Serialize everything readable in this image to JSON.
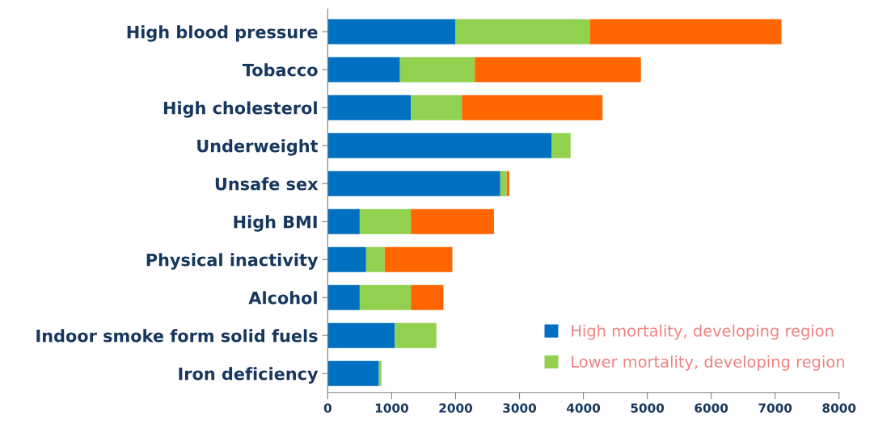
{
  "chart_data": {
    "type": "bar",
    "orientation": "horizontal",
    "stacked": true,
    "categories": [
      "High blood pressure",
      "Tobacco",
      "High cholesterol",
      "Underweight",
      "Unsafe sex",
      "High BMI",
      "Physical inactivity",
      "Alcohol",
      "Indoor smoke form solid fuels",
      "Iron deficiency"
    ],
    "series": [
      {
        "name": "High mortality, developing region",
        "color": "#0070c0",
        "values": [
          2000,
          1130,
          1300,
          3500,
          2700,
          500,
          600,
          500,
          1050,
          800
        ]
      },
      {
        "name": "Lower mortality, developing region",
        "color": "#92d050",
        "values": [
          2100,
          1170,
          800,
          300,
          100,
          800,
          290,
          800,
          650,
          40
        ]
      },
      {
        "color": "#ff6600",
        "values": [
          3000,
          2600,
          2200,
          0,
          40,
          1300,
          1060,
          510,
          0,
          0
        ]
      }
    ],
    "xlim": [
      0,
      8000
    ],
    "xticks": [
      0,
      1000,
      2000,
      3000,
      4000,
      5000,
      6000,
      7000,
      8000
    ],
    "grid": false,
    "legend": "bottom right"
  }
}
